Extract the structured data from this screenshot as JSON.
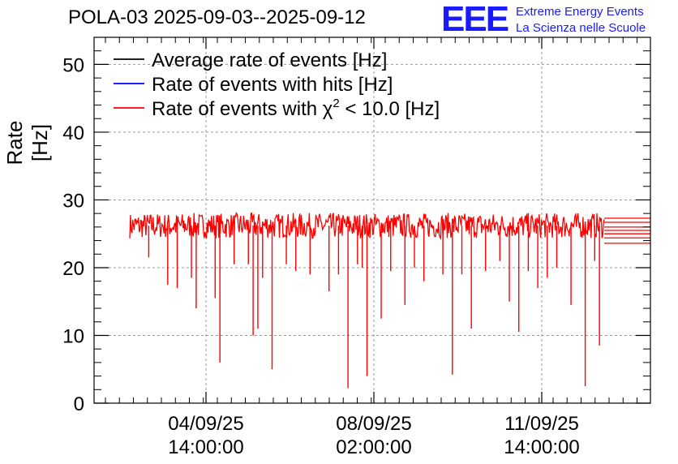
{
  "header": {
    "title": "POLA-03 2025-09-03--2025-09-12",
    "logo_text": "EEE",
    "logo_line1": "Extreme Energy Events",
    "logo_line2": "La Scienza nelle Scuole"
  },
  "chart_data": {
    "type": "line",
    "ylabel": "Rate [Hz]",
    "xlabel": "",
    "ylim": [
      0,
      54
    ],
    "y_ticks": [
      0,
      10,
      20,
      30,
      40,
      50
    ],
    "x_tick_labels": [
      {
        "date": "04/09/25",
        "time": "14:00:00"
      },
      {
        "date": "08/09/25",
        "time": "02:00:00"
      },
      {
        "date": "11/09/25",
        "time": "14:00:00"
      }
    ],
    "grid": true,
    "legend_placement": "top-left",
    "legend": [
      {
        "name": "Average rate of events [Hz]",
        "color": "#000000"
      },
      {
        "name": "Rate of events with hits [Hz]",
        "color": "#0000ff"
      },
      {
        "name": "Rate of events with χ² < 10.0 [Hz]",
        "color": "#ff0000",
        "name_prefix": "Rate of events with ",
        "chi": "χ",
        "chi_sup": "2",
        "name_suffix": " < 10.0 [Hz]"
      }
    ],
    "series": [
      {
        "name": "Rate of events with χ² < 10.0 [Hz]",
        "color": "#ff0000",
        "baseline_hz": 26.2,
        "noise_band_hz": [
          24.0,
          29.0
        ],
        "dips": [
          {
            "x": 0.04,
            "y": 21.5
          },
          {
            "x": 0.08,
            "y": 17.5
          },
          {
            "x": 0.1,
            "y": 17.0
          },
          {
            "x": 0.13,
            "y": 18.5
          },
          {
            "x": 0.14,
            "y": 14.0
          },
          {
            "x": 0.18,
            "y": 15.5
          },
          {
            "x": 0.19,
            "y": 6.0
          },
          {
            "x": 0.22,
            "y": 20.5
          },
          {
            "x": 0.25,
            "y": 20.5
          },
          {
            "x": 0.26,
            "y": 10.0
          },
          {
            "x": 0.27,
            "y": 11.0
          },
          {
            "x": 0.28,
            "y": 18.5
          },
          {
            "x": 0.3,
            "y": 5.0
          },
          {
            "x": 0.33,
            "y": 20.5
          },
          {
            "x": 0.35,
            "y": 19.5
          },
          {
            "x": 0.38,
            "y": 19.0
          },
          {
            "x": 0.42,
            "y": 16.5
          },
          {
            "x": 0.44,
            "y": 19.0
          },
          {
            "x": 0.46,
            "y": 2.2
          },
          {
            "x": 0.48,
            "y": 20.5
          },
          {
            "x": 0.49,
            "y": 20.0
          },
          {
            "x": 0.5,
            "y": 4.0
          },
          {
            "x": 0.53,
            "y": 12.5
          },
          {
            "x": 0.55,
            "y": 19.5
          },
          {
            "x": 0.58,
            "y": 14.5
          },
          {
            "x": 0.6,
            "y": 20.0
          },
          {
            "x": 0.62,
            "y": 18.0
          },
          {
            "x": 0.66,
            "y": 19.0
          },
          {
            "x": 0.68,
            "y": 4.2
          },
          {
            "x": 0.7,
            "y": 19.0
          },
          {
            "x": 0.72,
            "y": 11.0
          },
          {
            "x": 0.75,
            "y": 19.5
          },
          {
            "x": 0.78,
            "y": 21.0
          },
          {
            "x": 0.8,
            "y": 15.0
          },
          {
            "x": 0.82,
            "y": 10.5
          },
          {
            "x": 0.84,
            "y": 19.5
          },
          {
            "x": 0.86,
            "y": 17.0
          },
          {
            "x": 0.88,
            "y": 18.5
          },
          {
            "x": 0.9,
            "y": 20.0
          },
          {
            "x": 0.93,
            "y": 14.5
          },
          {
            "x": 0.96,
            "y": 2.5
          },
          {
            "x": 0.98,
            "y": 21.0
          },
          {
            "x": 0.99,
            "y": 8.5
          }
        ]
      }
    ]
  }
}
